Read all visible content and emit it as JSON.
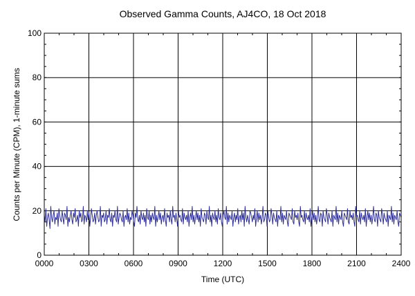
{
  "chart_data": {
    "type": "line",
    "title": "Observed Gamma Counts, AJ4CO, 18 Oct 2018",
    "xlabel": "Time (UTC)",
    "ylabel": "Counts per Minute (CPM), 1-minute sums",
    "xlim": [
      0,
      24
    ],
    "ylim": [
      0,
      100
    ],
    "x_ticks": [
      {
        "value": 0,
        "label": "0000"
      },
      {
        "value": 3,
        "label": "0300"
      },
      {
        "value": 6,
        "label": "0600"
      },
      {
        "value": 9,
        "label": "0900"
      },
      {
        "value": 12,
        "label": "1200"
      },
      {
        "value": 15,
        "label": "1500"
      },
      {
        "value": 18,
        "label": "1800"
      },
      {
        "value": 21,
        "label": "2100"
      },
      {
        "value": 24,
        "label": "2400"
      }
    ],
    "y_ticks": [
      {
        "value": 0,
        "label": "0"
      },
      {
        "value": 20,
        "label": "20"
      },
      {
        "value": 40,
        "label": "40"
      },
      {
        "value": 60,
        "label": "60"
      },
      {
        "value": 80,
        "label": "80"
      },
      {
        "value": 100,
        "label": "100"
      }
    ],
    "grid": true,
    "legend": "none",
    "series": [
      {
        "color": "#2e2e9a",
        "values": [
          18,
          15,
          21,
          13,
          17,
          19,
          16,
          12,
          22,
          17,
          15,
          18,
          20,
          14,
          17,
          16,
          19,
          13,
          21,
          18,
          16,
          15,
          20,
          17,
          14,
          19,
          18,
          16,
          22,
          13,
          17,
          15,
          18,
          20,
          16,
          14,
          19,
          17,
          21,
          15,
          16,
          18,
          13,
          20,
          17,
          19,
          15,
          16,
          22,
          14,
          18,
          17,
          15,
          20,
          16,
          19,
          13,
          17,
          21,
          18,
          15,
          16,
          19,
          14,
          18,
          20,
          17,
          15,
          16,
          22,
          13,
          18,
          17,
          19,
          15,
          16,
          20,
          14,
          18,
          17,
          21,
          16,
          15,
          19,
          13,
          18,
          17,
          20,
          16,
          15,
          22,
          14,
          17,
          19,
          18,
          16,
          15,
          20,
          13,
          17,
          18,
          16,
          21,
          15,
          19,
          14,
          17,
          16,
          20,
          18,
          15,
          13,
          19,
          17,
          22,
          16,
          15,
          18,
          14,
          20,
          17,
          16,
          19,
          15,
          18,
          13,
          21,
          17,
          16,
          20,
          14,
          18,
          15,
          19,
          17,
          16,
          22,
          13,
          18,
          15,
          17,
          20,
          16,
          19,
          14,
          17,
          18,
          15,
          21,
          16,
          13,
          19,
          17,
          18,
          15,
          20,
          16,
          14,
          22,
          17,
          18,
          15,
          19,
          16,
          13,
          20,
          17,
          18,
          16,
          15,
          21,
          14,
          19,
          17,
          16,
          18,
          15,
          20,
          13,
          17,
          19,
          16,
          22,
          15,
          18,
          14,
          17,
          20,
          16,
          19,
          15,
          18,
          13,
          21,
          17,
          16,
          15,
          19,
          18,
          14,
          20,
          17,
          16,
          22,
          15,
          18,
          13,
          19,
          17,
          16,
          20,
          15,
          18,
          14,
          21,
          17,
          16,
          19,
          15,
          13,
          18,
          20,
          17,
          16,
          22,
          14,
          19,
          15,
          18,
          17,
          16,
          20,
          13,
          17,
          19,
          15,
          18,
          16,
          21,
          14,
          17,
          18,
          15,
          20,
          16,
          19,
          13,
          22,
          17,
          15,
          18,
          16,
          14,
          20,
          19,
          17,
          15,
          18,
          16,
          21,
          13,
          17,
          20,
          15,
          19,
          16,
          18,
          14,
          17,
          22,
          15,
          16,
          19,
          18,
          13,
          20,
          17,
          15,
          16,
          21,
          18,
          14,
          19,
          17,
          16,
          15,
          20,
          13,
          18,
          17,
          16,
          22,
          15,
          19,
          14,
          18,
          17,
          16,
          20,
          15,
          13,
          19,
          18,
          17,
          16,
          21,
          15,
          14,
          20,
          17,
          18,
          16,
          19,
          15,
          13,
          22,
          17,
          18,
          16,
          15,
          20,
          14,
          19,
          17,
          16,
          18,
          15,
          21,
          13,
          17,
          20,
          16,
          19,
          15,
          18,
          14,
          17,
          22,
          16,
          15,
          19,
          18,
          13,
          20,
          17,
          16,
          15,
          21,
          18,
          14,
          19,
          17,
          16,
          15,
          20,
          13,
          18,
          17,
          16,
          22,
          15,
          19,
          14,
          18,
          17,
          16,
          20,
          15,
          13,
          19,
          18,
          17,
          16,
          21,
          15,
          14,
          20,
          17,
          18,
          16,
          19,
          15,
          13,
          22,
          17,
          18,
          16,
          15,
          20,
          14,
          19,
          17,
          16,
          18,
          15,
          21,
          13,
          17,
          20,
          16,
          19,
          15,
          18,
          14,
          17,
          22,
          16,
          15,
          19,
          18,
          13,
          20,
          17,
          16,
          15,
          21,
          18,
          14,
          19,
          17,
          16,
          15,
          20,
          13,
          18,
          17,
          16,
          22,
          15,
          19,
          14,
          18,
          17,
          16,
          20,
          15,
          13,
          19,
          18,
          17
        ]
      }
    ]
  }
}
